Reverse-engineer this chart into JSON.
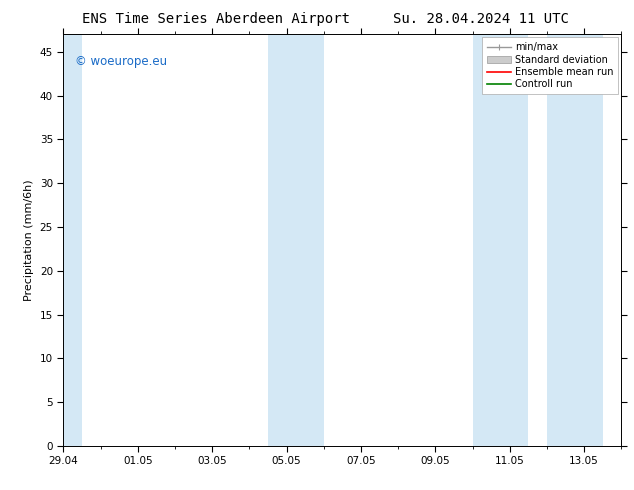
{
  "title_left": "ENS Time Series Aberdeen Airport",
  "title_right": "Su. 28.04.2024 11 UTC",
  "ylabel": "Precipitation (mm/6h)",
  "ylim": [
    0,
    47
  ],
  "yticks": [
    0,
    5,
    10,
    15,
    20,
    25,
    30,
    35,
    40,
    45
  ],
  "copyright_text": "© woeurope.eu",
  "copyright_color": "#1a6bc7",
  "bg_color": "#ffffff",
  "plot_bg_color": "#ffffff",
  "band_color": "#d4e8f5",
  "xticklabels": [
    "29.04",
    "01.05",
    "03.05",
    "05.05",
    "07.05",
    "09.05",
    "11.05",
    "13.05"
  ],
  "xtick_positions": [
    0,
    2,
    4,
    6,
    8,
    10,
    12,
    14
  ],
  "shade_positions": [
    [
      0.0,
      0.5
    ],
    [
      5.5,
      7.0
    ],
    [
      11.0,
      12.5
    ],
    [
      13.0,
      14.5
    ]
  ],
  "legend_entries": [
    {
      "label": "min/max",
      "color": "#999999",
      "lw": 1.0,
      "style": "minmax"
    },
    {
      "label": "Standard deviation",
      "color": "#cccccc",
      "lw": 6,
      "style": "bar"
    },
    {
      "label": "Ensemble mean run",
      "color": "#ff0000",
      "lw": 1.2,
      "style": "line"
    },
    {
      "label": "Controll run",
      "color": "#008000",
      "lw": 1.2,
      "style": "line"
    }
  ],
  "title_fontsize": 10,
  "axis_label_fontsize": 8,
  "tick_fontsize": 7.5,
  "copyright_fontsize": 8.5,
  "legend_fontsize": 7
}
